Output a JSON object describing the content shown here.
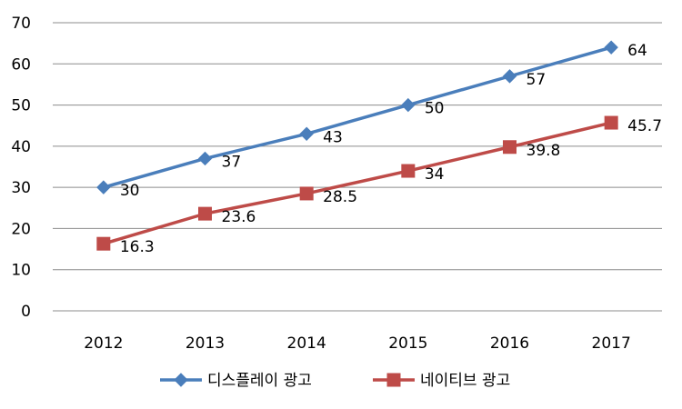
{
  "chart_data": {
    "type": "line",
    "title": "",
    "xlabel": "",
    "ylabel": "",
    "categories": [
      "2012",
      "2013",
      "2014",
      "2015",
      "2016",
      "2017"
    ],
    "ylim": [
      0,
      70
    ],
    "yticks": [
      "0",
      "10",
      "20",
      "30",
      "40",
      "50",
      "60",
      "70"
    ],
    "grid": true,
    "legend_position": "bottom",
    "series": [
      {
        "name": "디스플레이 광고",
        "values": [
          30,
          37,
          43,
          50,
          57,
          64
        ],
        "labels": [
          "30",
          "37",
          "43",
          "50",
          "57",
          "64"
        ],
        "color": "#4a7ebb",
        "marker": "diamond"
      },
      {
        "name": "네이티브 광고",
        "values": [
          16.3,
          23.6,
          28.5,
          34,
          39.8,
          45.7
        ],
        "labels": [
          "16.3",
          "23.6",
          "28.5",
          "34",
          "39.8",
          "45.7"
        ],
        "color": "#be4b48",
        "marker": "square"
      }
    ]
  }
}
